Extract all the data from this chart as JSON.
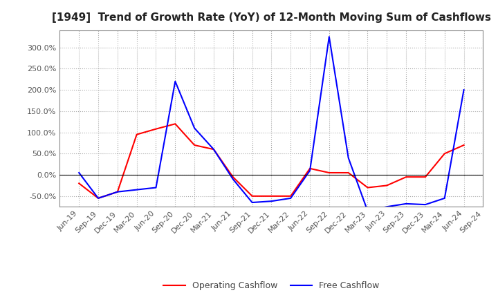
{
  "title": "[1949]  Trend of Growth Rate (YoY) of 12-Month Moving Sum of Cashflows",
  "x_labels": [
    "Jun-19",
    "Sep-19",
    "Dec-19",
    "Mar-20",
    "Jun-20",
    "Sep-20",
    "Dec-20",
    "Mar-21",
    "Jun-21",
    "Sep-21",
    "Dec-21",
    "Mar-22",
    "Jun-22",
    "Sep-22",
    "Dec-22",
    "Mar-23",
    "Jun-23",
    "Sep-23",
    "Dec-23",
    "Mar-24",
    "Jun-24",
    "Sep-24"
  ],
  "operating_cashflow": [
    -20,
    -55,
    -40,
    95,
    108,
    120,
    70,
    60,
    -5,
    -50,
    -50,
    -50,
    15,
    5,
    5,
    -30,
    -25,
    -5,
    -5,
    50,
    70,
    null
  ],
  "free_cashflow": [
    5,
    -55,
    -40,
    -35,
    -30,
    220,
    110,
    60,
    -10,
    -65,
    -62,
    -55,
    10,
    325,
    40,
    -85,
    -75,
    -68,
    -70,
    -55,
    200,
    null
  ],
  "operating_color": "#FF0000",
  "free_color": "#0000FF",
  "background_color": "#FFFFFF",
  "grid_color": "#AAAAAA",
  "yticks": [
    -50,
    0,
    50,
    100,
    150,
    200,
    250,
    300
  ],
  "ylim": [
    -75,
    340
  ],
  "legend_labels": [
    "Operating Cashflow",
    "Free Cashflow"
  ],
  "title_fontsize": 11,
  "tick_fontsize": 8,
  "legend_fontsize": 9
}
